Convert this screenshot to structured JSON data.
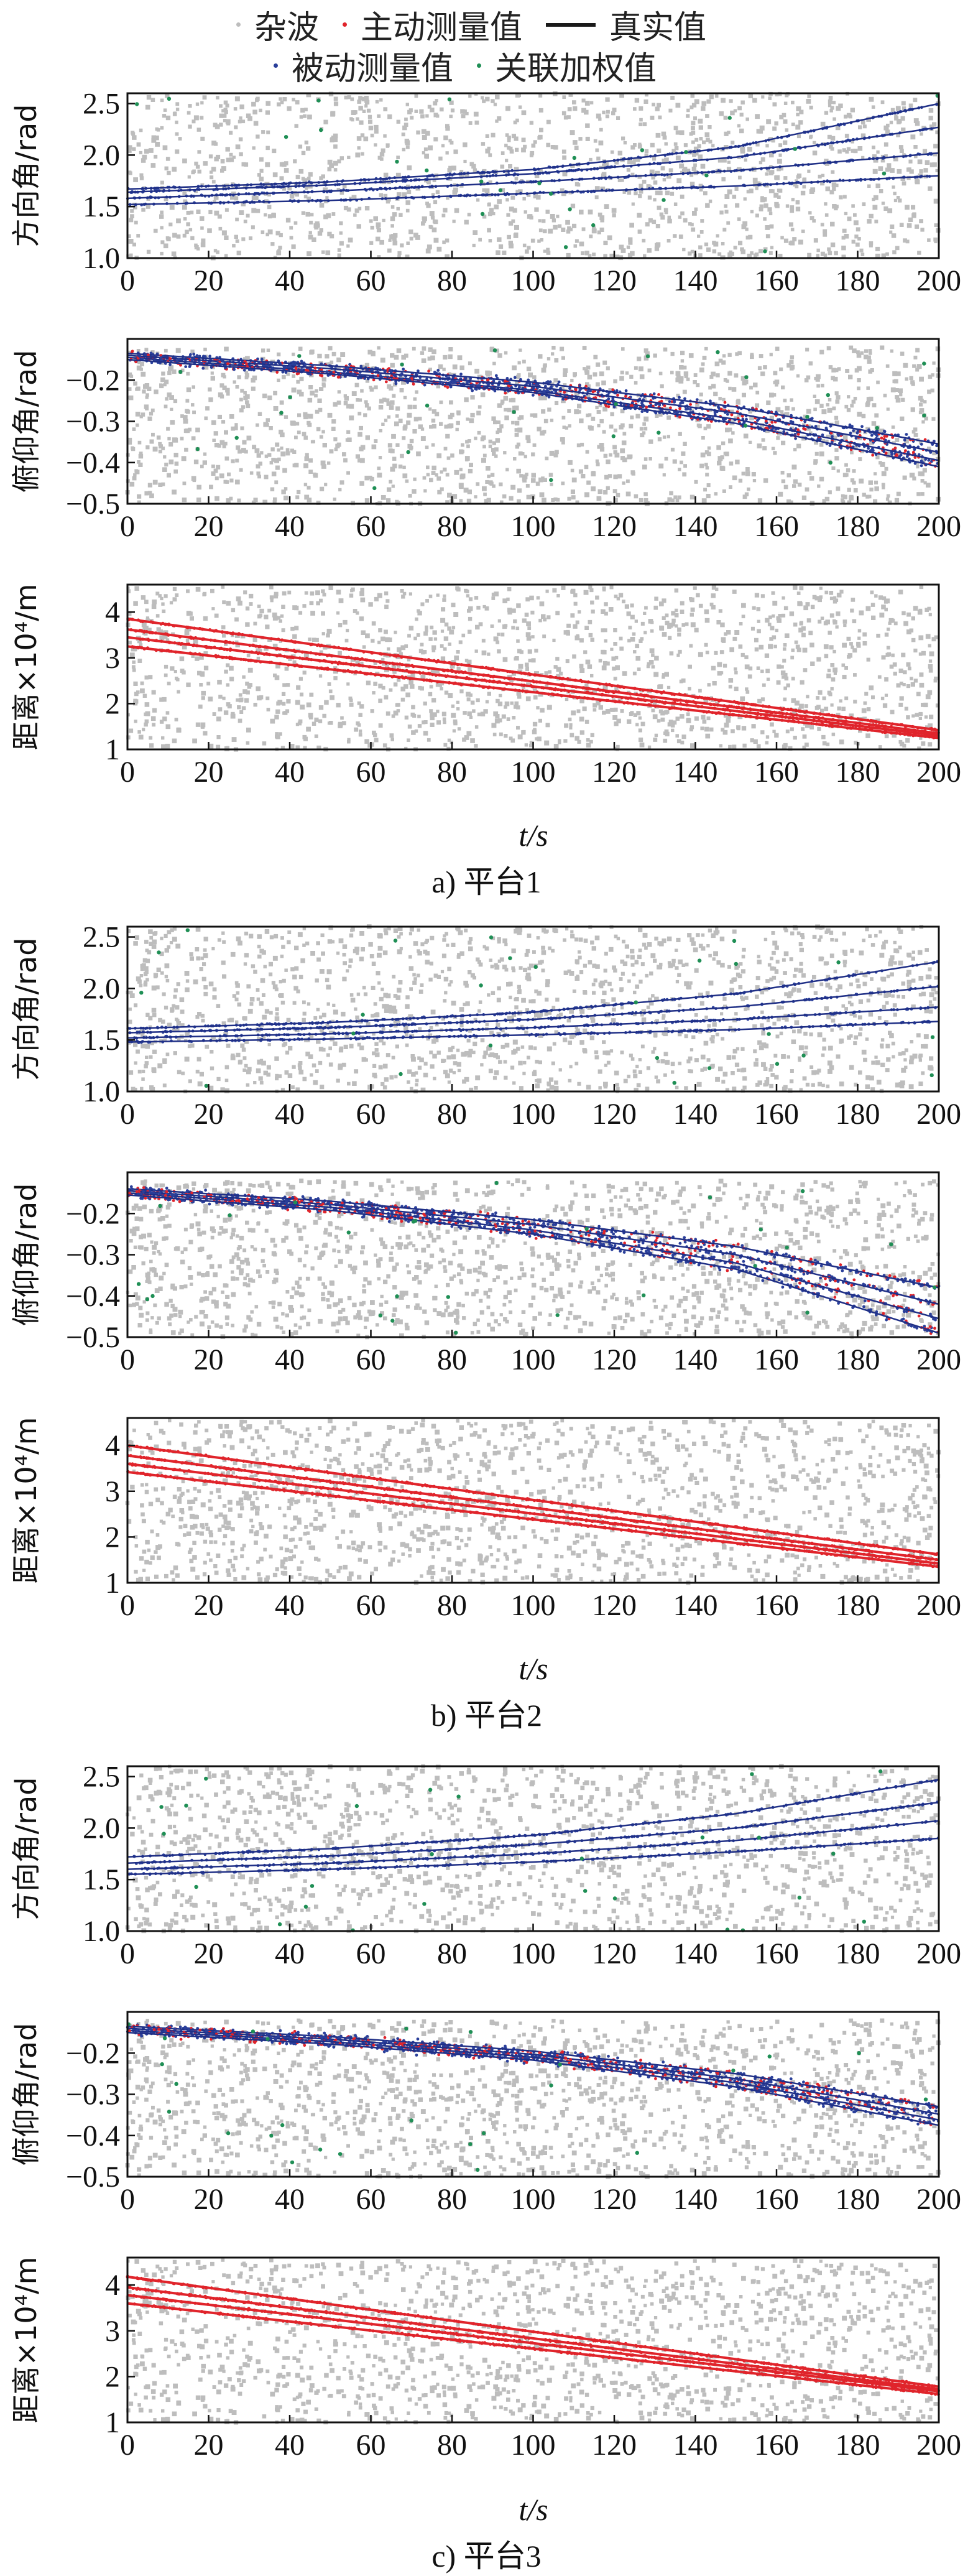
{
  "legend": {
    "clutter": "杂波",
    "active": "主动测量值",
    "truth": "真实值",
    "passive": "被动测量值",
    "fused": "关联加权值"
  },
  "colors": {
    "clutter": "#bdbdbd",
    "active": "#e0242b",
    "truth": "#1f2f86",
    "passive": "#2a3f9a",
    "fused": "#1f8f55",
    "axis": "#111111"
  },
  "captions": [
    "a) 平台1",
    "b) 平台2",
    "c) 平台3"
  ],
  "chart_data": [
    {
      "platform": "a) 平台1",
      "panel": "azimuth",
      "type": "scatter",
      "ylabel": "方向角/rad",
      "xlabel": "",
      "xlim": [
        0,
        200
      ],
      "ylim": [
        1.0,
        2.6
      ],
      "xticks": [
        0,
        20,
        40,
        60,
        80,
        100,
        120,
        140,
        160,
        180,
        200
      ],
      "yticks": [
        1.0,
        1.5,
        2.0,
        2.5
      ],
      "ytick_labels": [
        "1.0",
        "1.5",
        "2.0",
        "2.5"
      ],
      "clutter_range": [
        1.0,
        2.6
      ],
      "series": [
        {
          "x": [
            0,
            50,
            100,
            150,
            200
          ],
          "y": [
            1.67,
            1.74,
            1.86,
            2.08,
            2.5
          ]
        },
        {
          "x": [
            0,
            50,
            100,
            150,
            200
          ],
          "y": [
            1.64,
            1.71,
            1.82,
            1.98,
            2.27
          ]
        },
        {
          "x": [
            0,
            50,
            100,
            150,
            200
          ],
          "y": [
            1.58,
            1.65,
            1.74,
            1.85,
            2.02
          ]
        },
        {
          "x": [
            0,
            50,
            100,
            150,
            200
          ],
          "y": [
            1.52,
            1.56,
            1.63,
            1.7,
            1.8
          ]
        }
      ]
    },
    {
      "platform": "a) 平台1",
      "panel": "elevation",
      "type": "scatter",
      "ylabel": "俯仰角/rad",
      "xlabel": "",
      "xlim": [
        0,
        200
      ],
      "ylim": [
        -0.5,
        -0.1
      ],
      "xticks": [
        0,
        20,
        40,
        60,
        80,
        100,
        120,
        140,
        160,
        180,
        200
      ],
      "yticks": [
        -0.5,
        -0.4,
        -0.3,
        -0.2
      ],
      "ytick_labels": [
        "−0.5",
        "−0.4",
        "−0.3",
        "−0.2"
      ],
      "clutter_range": [
        -0.5,
        -0.12
      ],
      "series": [
        {
          "x": [
            0,
            50,
            100,
            150,
            200
          ],
          "y": [
            -0.135,
            -0.165,
            -0.205,
            -0.265,
            -0.355
          ]
        },
        {
          "x": [
            0,
            50,
            100,
            150,
            200
          ],
          "y": [
            -0.14,
            -0.172,
            -0.215,
            -0.28,
            -0.375
          ]
        },
        {
          "x": [
            0,
            50,
            100,
            150,
            200
          ],
          "y": [
            -0.145,
            -0.18,
            -0.225,
            -0.295,
            -0.395
          ]
        },
        {
          "x": [
            0,
            50,
            100,
            150,
            200
          ],
          "y": [
            -0.15,
            -0.185,
            -0.23,
            -0.305,
            -0.41
          ]
        }
      ]
    },
    {
      "platform": "a) 平台1",
      "panel": "range",
      "type": "scatter",
      "ylabel": "距离×10⁴/m",
      "xlabel": "t/s",
      "xlim": [
        0,
        200
      ],
      "ylim": [
        1,
        4.6
      ],
      "xticks": [
        0,
        20,
        40,
        60,
        80,
        100,
        120,
        140,
        160,
        180,
        200
      ],
      "yticks": [
        1,
        2,
        3,
        4
      ],
      "ytick_labels": [
        "1",
        "2",
        "3",
        "4"
      ],
      "clutter_range": [
        1.0,
        4.55
      ],
      "series": [
        {
          "x": [
            0,
            200
          ],
          "y": [
            3.85,
            1.42
          ]
        },
        {
          "x": [
            0,
            200
          ],
          "y": [
            3.62,
            1.35
          ]
        },
        {
          "x": [
            0,
            200
          ],
          "y": [
            3.45,
            1.3
          ]
        },
        {
          "x": [
            0,
            200
          ],
          "y": [
            3.25,
            1.25
          ]
        }
      ]
    },
    {
      "platform": "b) 平台2",
      "panel": "azimuth",
      "type": "scatter",
      "ylabel": "方向角/rad",
      "xlabel": "",
      "xlim": [
        0,
        200
      ],
      "ylim": [
        1.0,
        2.6
      ],
      "xticks": [
        0,
        20,
        40,
        60,
        80,
        100,
        120,
        140,
        160,
        180,
        200
      ],
      "yticks": [
        1.0,
        1.5,
        2.0,
        2.5
      ],
      "ytick_labels": [
        "1.0",
        "1.5",
        "2.0",
        "2.5"
      ],
      "clutter_range": [
        1.0,
        2.6
      ],
      "series": [
        {
          "x": [
            0,
            50,
            100,
            150,
            200
          ],
          "y": [
            1.61,
            1.67,
            1.77,
            1.95,
            2.26
          ]
        },
        {
          "x": [
            0,
            50,
            100,
            150,
            200
          ],
          "y": [
            1.57,
            1.62,
            1.7,
            1.82,
            2.02
          ]
        },
        {
          "x": [
            0,
            50,
            100,
            150,
            200
          ],
          "y": [
            1.52,
            1.56,
            1.62,
            1.7,
            1.82
          ]
        },
        {
          "x": [
            0,
            50,
            100,
            150,
            200
          ],
          "y": [
            1.48,
            1.51,
            1.55,
            1.6,
            1.68
          ]
        }
      ]
    },
    {
      "platform": "b) 平台2",
      "panel": "elevation",
      "type": "scatter",
      "ylabel": "俯仰角/rad",
      "xlabel": "",
      "xlim": [
        0,
        200
      ],
      "ylim": [
        -0.5,
        -0.1
      ],
      "xticks": [
        0,
        20,
        40,
        60,
        80,
        100,
        120,
        140,
        160,
        180,
        200
      ],
      "yticks": [
        -0.5,
        -0.4,
        -0.3,
        -0.2
      ],
      "ytick_labels": [
        "−0.5",
        "−0.4",
        "−0.3",
        "−0.2"
      ],
      "clutter_range": [
        -0.5,
        -0.12
      ],
      "series": [
        {
          "x": [
            0,
            50,
            100,
            150,
            200
          ],
          "y": [
            -0.14,
            -0.17,
            -0.215,
            -0.28,
            -0.38
          ]
        },
        {
          "x": [
            0,
            50,
            100,
            150,
            200
          ],
          "y": [
            -0.145,
            -0.178,
            -0.227,
            -0.3,
            -0.42
          ]
        },
        {
          "x": [
            0,
            50,
            100,
            150,
            200
          ],
          "y": [
            -0.15,
            -0.185,
            -0.24,
            -0.32,
            -0.455
          ]
        },
        {
          "x": [
            0,
            50,
            100,
            150,
            200
          ],
          "y": [
            -0.155,
            -0.192,
            -0.25,
            -0.335,
            -0.49
          ]
        }
      ]
    },
    {
      "platform": "b) 平台2",
      "panel": "range",
      "type": "scatter",
      "ylabel": "距离×10⁴/m",
      "xlabel": "t/s",
      "xlim": [
        0,
        200
      ],
      "ylim": [
        1,
        4.6
      ],
      "xticks": [
        0,
        20,
        40,
        60,
        80,
        100,
        120,
        140,
        160,
        180,
        200
      ],
      "yticks": [
        1,
        2,
        3,
        4
      ],
      "ytick_labels": [
        "1",
        "2",
        "3",
        "4"
      ],
      "clutter_range": [
        1.0,
        4.55
      ],
      "series": [
        {
          "x": [
            0,
            200
          ],
          "y": [
            4.0,
            1.62
          ]
        },
        {
          "x": [
            0,
            200
          ],
          "y": [
            3.78,
            1.5
          ]
        },
        {
          "x": [
            0,
            200
          ],
          "y": [
            3.6,
            1.42
          ]
        },
        {
          "x": [
            0,
            200
          ],
          "y": [
            3.42,
            1.35
          ]
        }
      ]
    },
    {
      "platform": "c) 平台3",
      "panel": "azimuth",
      "type": "scatter",
      "ylabel": "方向角/rad",
      "xlabel": "",
      "xlim": [
        0,
        200
      ],
      "ylim": [
        1.0,
        2.6
      ],
      "xticks": [
        0,
        20,
        40,
        60,
        80,
        100,
        120,
        140,
        160,
        180,
        200
      ],
      "yticks": [
        1.0,
        1.5,
        2.0,
        2.5
      ],
      "ytick_labels": [
        "1.0",
        "1.5",
        "2.0",
        "2.5"
      ],
      "clutter_range": [
        1.0,
        2.6
      ],
      "series": [
        {
          "x": [
            0,
            50,
            100,
            150,
            200
          ],
          "y": [
            1.72,
            1.8,
            1.93,
            2.14,
            2.47
          ]
        },
        {
          "x": [
            0,
            50,
            100,
            150,
            200
          ],
          "y": [
            1.66,
            1.73,
            1.84,
            2.0,
            2.25
          ]
        },
        {
          "x": [
            0,
            50,
            100,
            150,
            200
          ],
          "y": [
            1.6,
            1.66,
            1.75,
            1.88,
            2.07
          ]
        },
        {
          "x": [
            0,
            50,
            100,
            150,
            200
          ],
          "y": [
            1.55,
            1.6,
            1.67,
            1.77,
            1.9
          ]
        }
      ]
    },
    {
      "platform": "c) 平台3",
      "panel": "elevation",
      "type": "scatter",
      "ylabel": "俯仰角/rad",
      "xlabel": "",
      "xlim": [
        0,
        200
      ],
      "ylim": [
        -0.5,
        -0.1
      ],
      "xticks": [
        0,
        20,
        40,
        60,
        80,
        100,
        120,
        140,
        160,
        180,
        200
      ],
      "yticks": [
        -0.5,
        -0.4,
        -0.3,
        -0.2
      ],
      "ytick_labels": [
        "−0.5",
        "−0.4",
        "−0.3",
        "−0.2"
      ],
      "clutter_range": [
        -0.5,
        -0.12
      ],
      "series": [
        {
          "x": [
            0,
            50,
            100,
            150,
            200
          ],
          "y": [
            -0.135,
            -0.16,
            -0.195,
            -0.25,
            -0.33
          ]
        },
        {
          "x": [
            0,
            50,
            100,
            150,
            200
          ],
          "y": [
            -0.14,
            -0.166,
            -0.203,
            -0.262,
            -0.348
          ]
        },
        {
          "x": [
            0,
            50,
            100,
            150,
            200
          ],
          "y": [
            -0.145,
            -0.172,
            -0.21,
            -0.272,
            -0.362
          ]
        },
        {
          "x": [
            0,
            50,
            100,
            150,
            200
          ],
          "y": [
            -0.15,
            -0.178,
            -0.217,
            -0.282,
            -0.375
          ]
        }
      ]
    },
    {
      "platform": "c) 平台3",
      "panel": "range",
      "type": "scatter",
      "ylabel": "距离×10⁴/m",
      "xlabel": "t/s",
      "xlim": [
        0,
        200
      ],
      "ylim": [
        1,
        4.6
      ],
      "xticks": [
        0,
        20,
        40,
        60,
        80,
        100,
        120,
        140,
        160,
        180,
        200
      ],
      "yticks": [
        1,
        2,
        3,
        4
      ],
      "ytick_labels": [
        "1",
        "2",
        "3",
        "4"
      ],
      "clutter_range": [
        1.0,
        4.55
      ],
      "series": [
        {
          "x": [
            0,
            200
          ],
          "y": [
            4.18,
            1.78
          ]
        },
        {
          "x": [
            0,
            200
          ],
          "y": [
            3.95,
            1.72
          ]
        },
        {
          "x": [
            0,
            200
          ],
          "y": [
            3.78,
            1.68
          ]
        },
        {
          "x": [
            0,
            200
          ],
          "y": [
            3.6,
            1.62
          ]
        }
      ]
    }
  ]
}
